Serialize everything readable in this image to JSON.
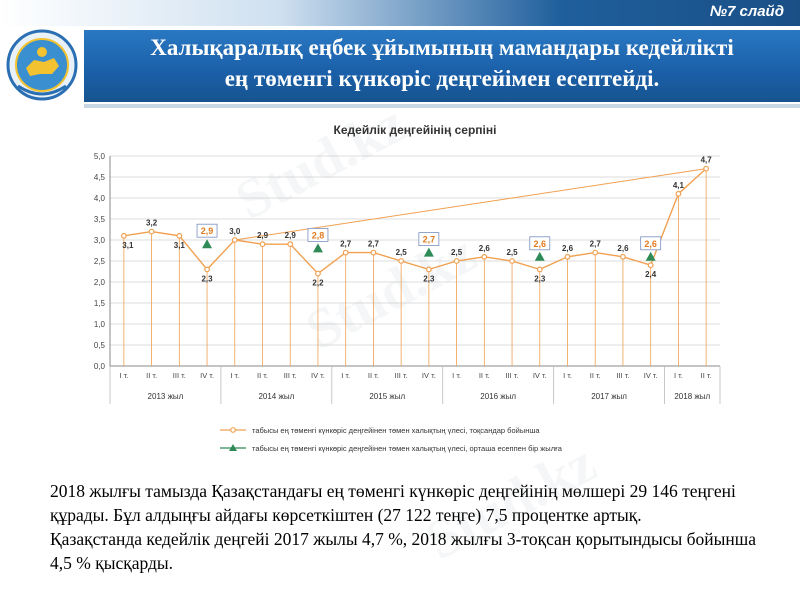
{
  "header": {
    "slide_number": "№7 слайд"
  },
  "title": {
    "line1": "Халықаралық еңбек ұйымының мамандары кедейлікті",
    "line2": "ең төменгі күнкөріс деңгейімен есептейді."
  },
  "watermark": "Stud.kz",
  "chart_data": {
    "type": "line",
    "title": "Кедейлік деңгейінің серпіні",
    "ylim": [
      0,
      5
    ],
    "y_ticks": [
      "0,0",
      "0,5",
      "1,0",
      "1,5",
      "2,0",
      "2,5",
      "3,0",
      "3,5",
      "4,0",
      "4,5",
      "5,0"
    ],
    "categories": [
      "I т.",
      "II т.",
      "III т.",
      "IV т.",
      "I т.",
      "II т.",
      "III т.",
      "IV т.",
      "I т.",
      "II т.",
      "III т.",
      "IV т.",
      "I т.",
      "II т.",
      "III т.",
      "IV т.",
      "I т.",
      "II т.",
      "III т.",
      "IV т.",
      "I т.",
      "II т."
    ],
    "year_labels": [
      "2013 жыл",
      "2014 жыл",
      "2015 жыл",
      "2016 жыл",
      "2017 жыл",
      "2018 жыл"
    ],
    "series": [
      {
        "name": "табысы ең төменгі күнкөріс деңгейінен төмен халықтың үлесі, тоқсандар бойынша",
        "color": "#f0a050",
        "values": [
          3.1,
          3.2,
          3.1,
          2.3,
          3.0,
          2.9,
          2.9,
          2.2,
          2.7,
          2.7,
          2.5,
          2.3,
          2.5,
          2.6,
          2.5,
          2.3,
          2.6,
          2.7,
          2.6,
          2.4,
          4.1,
          4.7
        ],
        "labels": [
          "3,1",
          "3,2",
          "3,1",
          "2,3",
          "3,0",
          "2,9",
          "2,9",
          "2,2",
          "2,7",
          "2,7",
          "2,5",
          "2,3",
          "2,5",
          "2,6",
          "2,5",
          "2,3",
          "2,6",
          "2,7",
          "2,6",
          "2,4",
          "4,1",
          "4,7"
        ]
      },
      {
        "name": "табысы ең төменгі күнкөріс деңгейінен төмен халықтың үлесі, орташа есеппен бір жылға",
        "color": "#2e8b57",
        "points": [
          {
            "x_index": 3,
            "value": 2.9,
            "label": "2,9"
          },
          {
            "x_index": 7,
            "value": 2.8,
            "label": "2,8"
          },
          {
            "x_index": 11,
            "value": 2.7,
            "label": "2,7"
          },
          {
            "x_index": 15,
            "value": 2.6,
            "label": "2,6"
          },
          {
            "x_index": 19,
            "value": 2.6,
            "label": "2,6"
          }
        ]
      }
    ],
    "trend_line": {
      "from_index": 4,
      "from_value": 3.0,
      "to_index": 21,
      "to_value": 4.7,
      "color": "#f0a050"
    },
    "grid": true
  },
  "body": {
    "paragraph1": "2018 жылғы тамызда Қазақстандағы ең төменгі күнкөріс деңгейінің мөлшері 29 146 теңгені құрады. Бұл алдыңғы айдағы көрсеткіштен (27 122 теңге) 7,5 процентке артық.",
    "paragraph2": "Қазақстанда кедейлік деңгейі 2017 жылы 4,7 %, 2018 жылғы 3-тоқсан қорытындысы бойынша 4,5 % қысқарды."
  }
}
